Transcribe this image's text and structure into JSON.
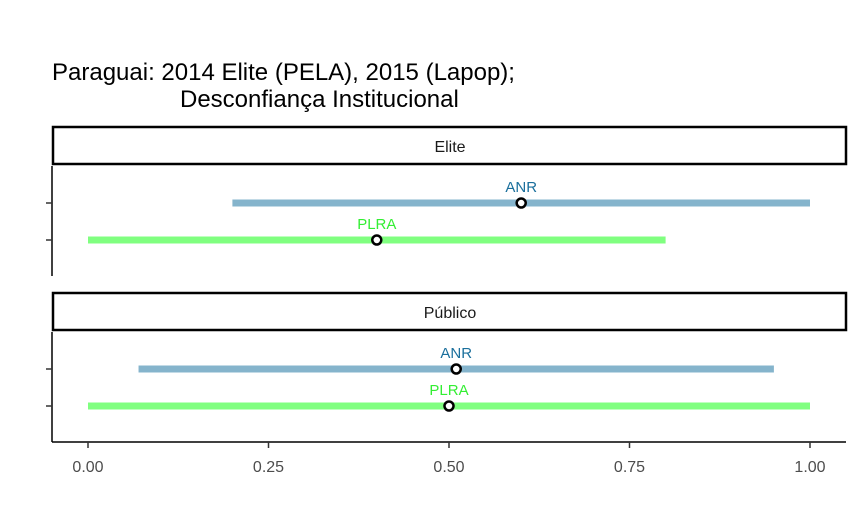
{
  "chart_data": {
    "type": "errorbar",
    "title_line1": "Paraguai: 2014 Elite (PELA), 2015 (Lapop);",
    "title_line2": "Desconfiança Institucional",
    "xlabel": "",
    "ylabel": "",
    "xlim": [
      0,
      1
    ],
    "x_ticks": [
      "0.00",
      "0.25",
      "0.50",
      "0.75",
      "1.00"
    ],
    "x_tick_values": [
      0,
      0.25,
      0.5,
      0.75,
      1.0
    ],
    "colors": {
      "ANR": "#85b4cc",
      "PLRA": "#80ff80"
    },
    "label_colors": {
      "ANR": "#1a6f9c",
      "PLRA": "#33ee33"
    },
    "panels": [
      {
        "name": "Elite",
        "points": [
          {
            "party": "ANR",
            "low": 0.2,
            "mean": 0.6,
            "high": 1.0
          },
          {
            "party": "PLRA",
            "low": 0.0,
            "mean": 0.4,
            "high": 0.8
          }
        ]
      },
      {
        "name": "Público",
        "points": [
          {
            "party": "ANR",
            "low": 0.07,
            "mean": 0.51,
            "high": 0.95
          },
          {
            "party": "PLRA",
            "low": 0.0,
            "mean": 0.5,
            "high": 1.0
          }
        ]
      }
    ]
  }
}
